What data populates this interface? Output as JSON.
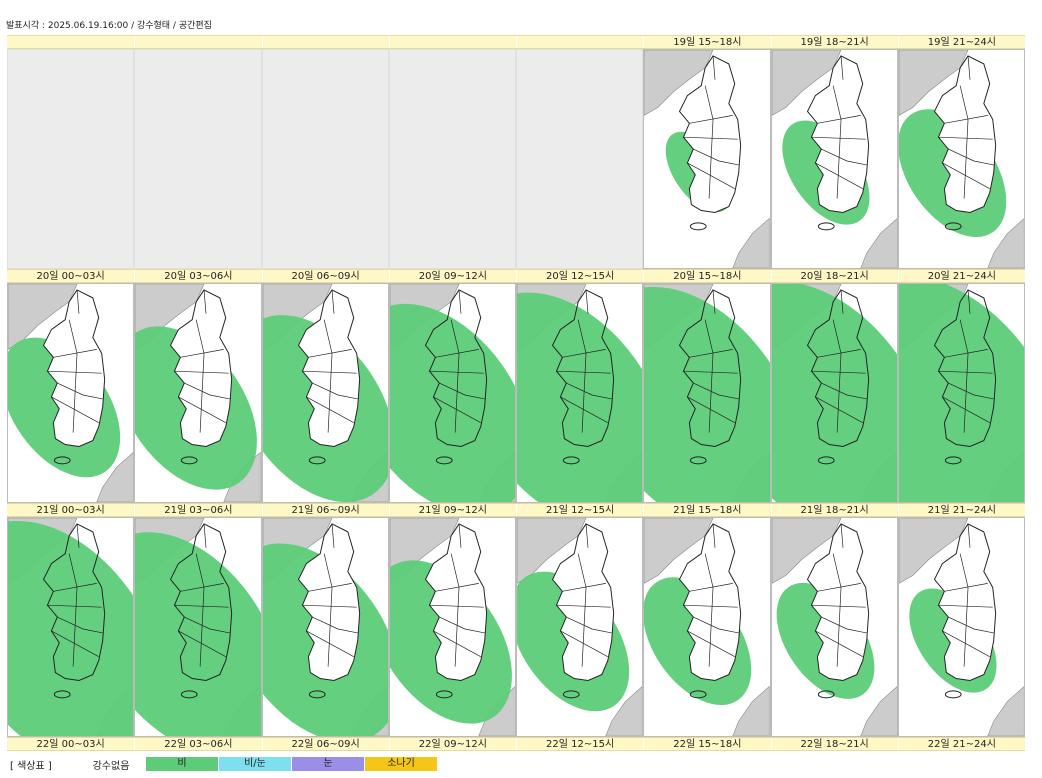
{
  "header": {
    "text": "발표시각 : 2025.06.19.16:00 / 강수형태 / 공간편집"
  },
  "rows": [
    {
      "labels": [
        "",
        "",
        "",
        "",
        "",
        "19일 15~18시",
        "19일 18~21시",
        "19일 21~24시"
      ],
      "coverage": [
        null,
        null,
        null,
        null,
        null,
        0.05,
        0.15,
        0.25
      ]
    },
    {
      "labels": [
        "20일 00~03시",
        "20일 03~06시",
        "20일 06~09시",
        "20일 09~12시",
        "20일 12~15시",
        "20일 15~18시",
        "20일 18~21시",
        "20일 21~24시"
      ],
      "coverage": [
        0.3,
        0.4,
        0.5,
        0.6,
        0.7,
        0.75,
        0.8,
        0.85
      ]
    },
    {
      "labels": [
        "21일 00~03시",
        "21일 03~06시",
        "21일 06~09시",
        "21일 09~12시",
        "21일 12~15시",
        "21일 15~18시",
        "21일 18~21시",
        "21일 21~24시"
      ],
      "coverage": [
        0.75,
        0.65,
        0.55,
        0.4,
        0.3,
        0.25,
        0.2,
        0.15
      ]
    }
  ],
  "footer_labels": [
    "22일 00~03시",
    "22일 03~06시",
    "22일 06~09시",
    "22일 09~12시",
    "22일 12~15시",
    "22일 15~18시",
    "22일 18~21시",
    "22일 21~24시"
  ],
  "legend": {
    "title": "[ 색상표 ]",
    "no_precip": "강수없음",
    "items": [
      {
        "label": "비",
        "color": "#5ccc78"
      },
      {
        "label": "비/눈",
        "color": "#7ee0ee"
      },
      {
        "label": "눈",
        "color": "#9a8ee6"
      },
      {
        "label": "소나기",
        "color": "#f5c518"
      }
    ]
  },
  "colors": {
    "rain": "#5ccc78",
    "land": "#ffffff",
    "foreign_land": "#cccccc",
    "border": "#222222"
  }
}
